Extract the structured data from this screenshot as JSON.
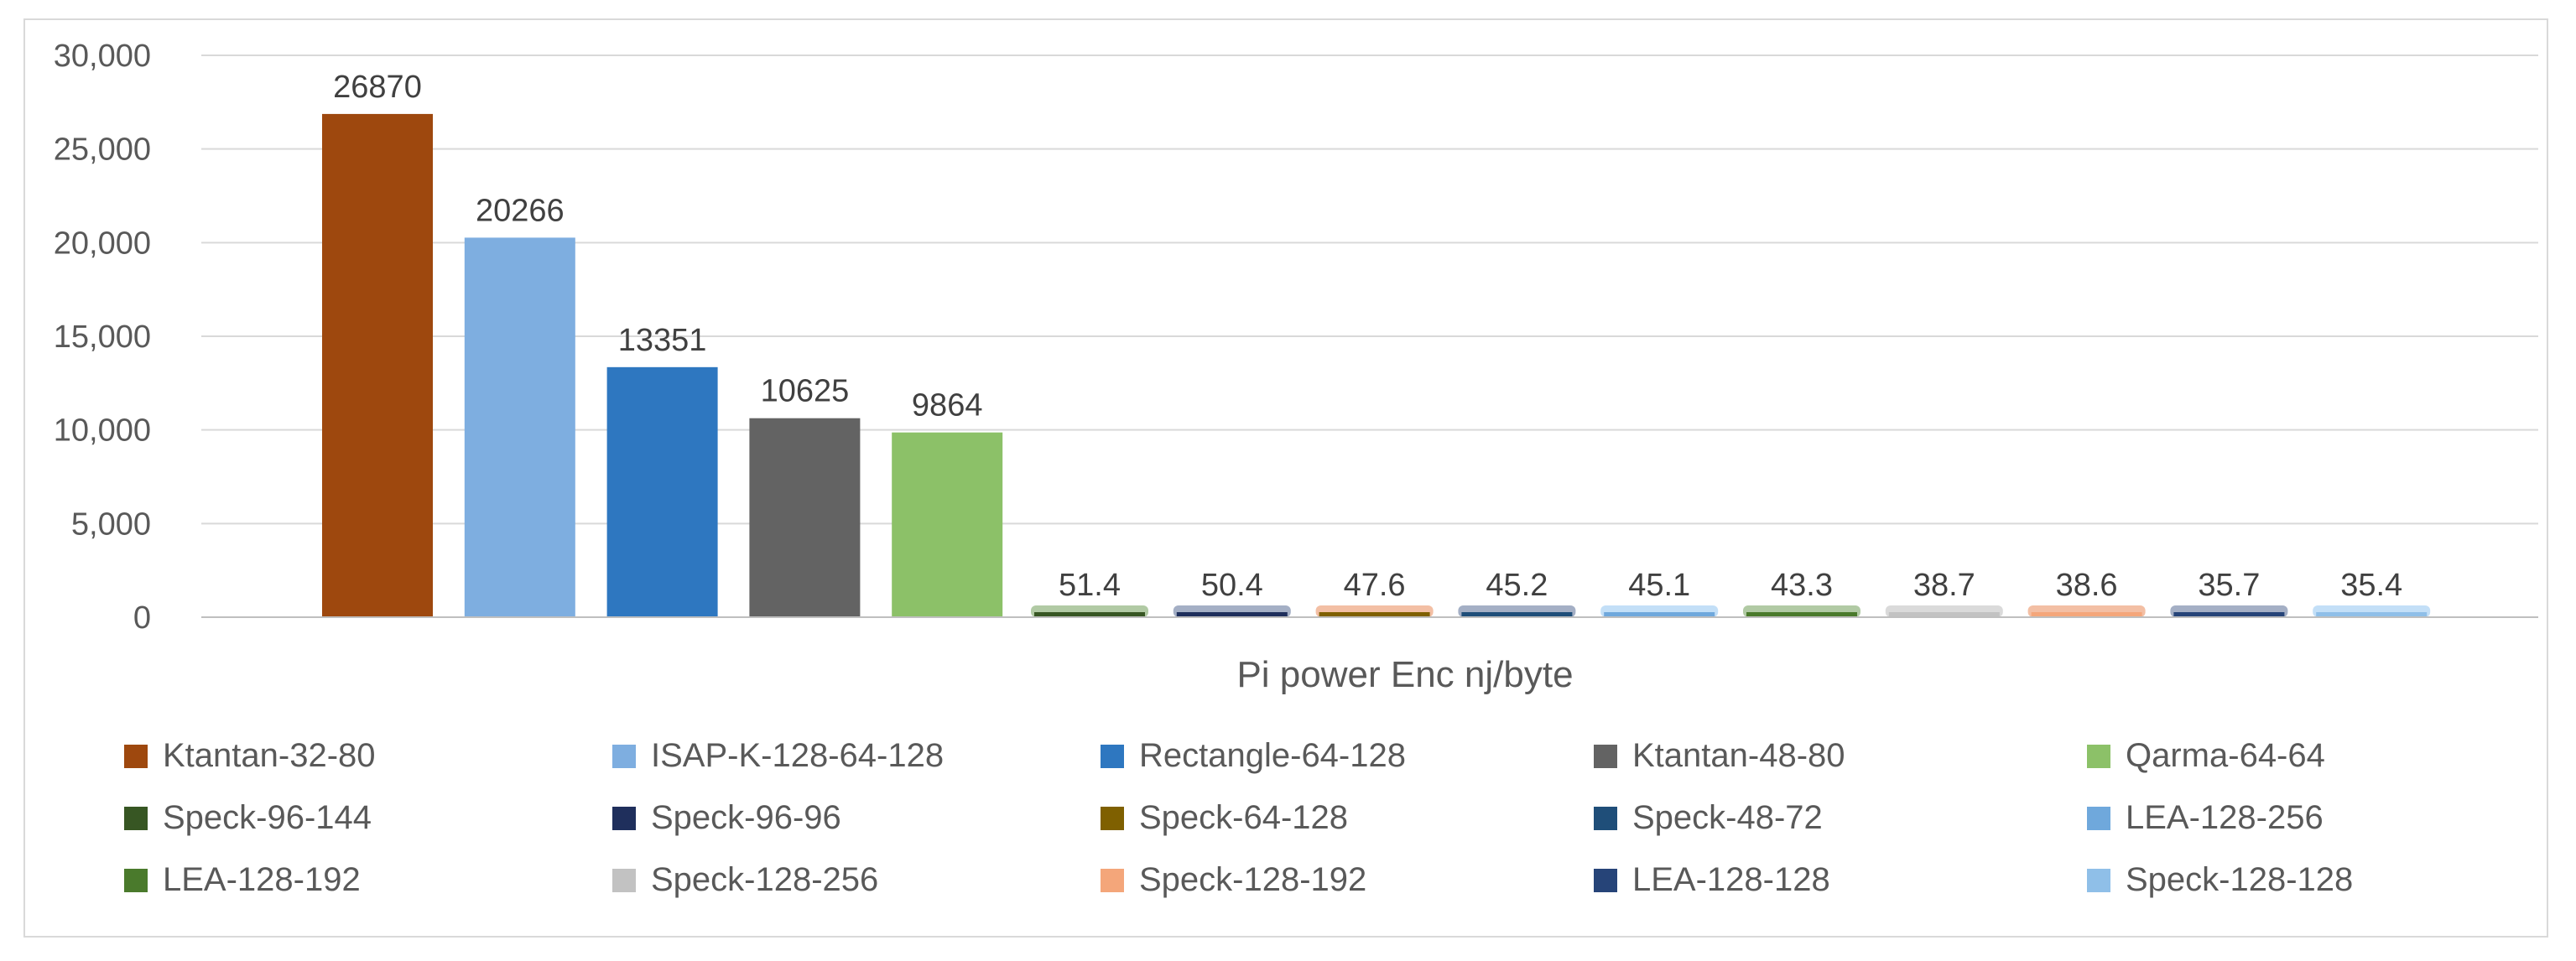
{
  "chart_data": {
    "type": "bar",
    "title": "",
    "xlabel": "Pi power Enc nj/byte",
    "ylabel": "",
    "ylim": [
      0,
      30000
    ],
    "yticks": [
      0,
      5000,
      10000,
      15000,
      20000,
      25000,
      30000
    ],
    "ytick_labels": [
      "0",
      "5,000",
      "10,000",
      "15,000",
      "20,000",
      "25,000",
      "30,000"
    ],
    "grid": true,
    "legend_position": "bottom",
    "categories": [
      "Ktantan-32-80",
      "ISAP-K-128-64-128",
      "Rectangle-64-128",
      "Ktantan-48-80",
      "Qarma-64-64",
      "Speck-96-144",
      "Speck-96-96",
      "Speck-64-128",
      "Speck-48-72",
      "LEA-128-256",
      "LEA-128-192",
      "Speck-128-256",
      "Speck-128-192",
      "LEA-128-128",
      "Speck-128-128"
    ],
    "values": [
      26870,
      20266,
      13351,
      10625,
      9864,
      51.4,
      50.4,
      47.6,
      45.2,
      45.1,
      43.3,
      38.7,
      38.6,
      35.7,
      35.4
    ],
    "data_labels": [
      "26870",
      "20266",
      "13351",
      "10625",
      "9864",
      "51.4",
      "50.4",
      "47.6",
      "45.2",
      "45.1",
      "43.3",
      "38.7",
      "38.6",
      "35.7",
      "35.4"
    ],
    "bar_colors": [
      "#9e480e",
      "#7eaee0",
      "#2e77c0",
      "#636363",
      "#8cc168",
      "#375623",
      "#1f2f5c",
      "#7f6000",
      "#1f4e79",
      "#6fa8dc",
      "#4a7a2c",
      "#c2c2c2",
      "#f4a67a",
      "#264478",
      "#8fbfe8"
    ],
    "glow_colors": [
      "",
      "",
      "",
      "",
      "",
      "#a9c49a",
      "#9aa6bf",
      "#f2b89a",
      "#9aa6bf",
      "#bcdcf6",
      "#a9c49a",
      "#d6d6d6",
      "#f2b89a",
      "#9aa6bf",
      "#bcdcf6"
    ],
    "grid_color": "#d9d9d9",
    "axis_color": "#bfbfbf"
  }
}
